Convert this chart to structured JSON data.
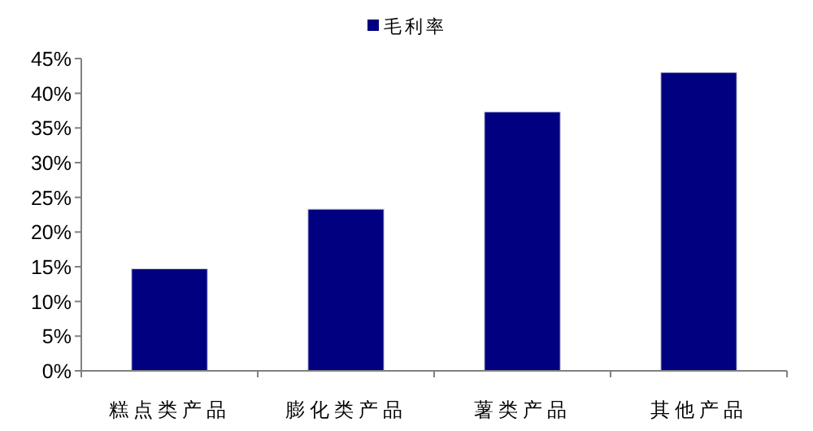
{
  "chart_data": {
    "type": "bar",
    "categories": [
      "糕点类产品",
      "膨化类产品",
      "薯类产品",
      "其他产品"
    ],
    "series": [
      {
        "name": "毛利率",
        "color": "#000080",
        "values": [
          14.7,
          23.3,
          37.3,
          43.0
        ]
      }
    ],
    "ylim": [
      0,
      45
    ],
    "yticks": [
      {
        "value": 0,
        "label": "0%"
      },
      {
        "value": 5,
        "label": "5%"
      },
      {
        "value": 10,
        "label": "10%"
      },
      {
        "value": 15,
        "label": "15%"
      },
      {
        "value": 20,
        "label": "20%"
      },
      {
        "value": 25,
        "label": "25%"
      },
      {
        "value": 30,
        "label": "30%"
      },
      {
        "value": 35,
        "label": "35%"
      },
      {
        "value": 40,
        "label": "40%"
      },
      {
        "value": 45,
        "label": "45%"
      }
    ],
    "grid": false,
    "legend": "top"
  }
}
